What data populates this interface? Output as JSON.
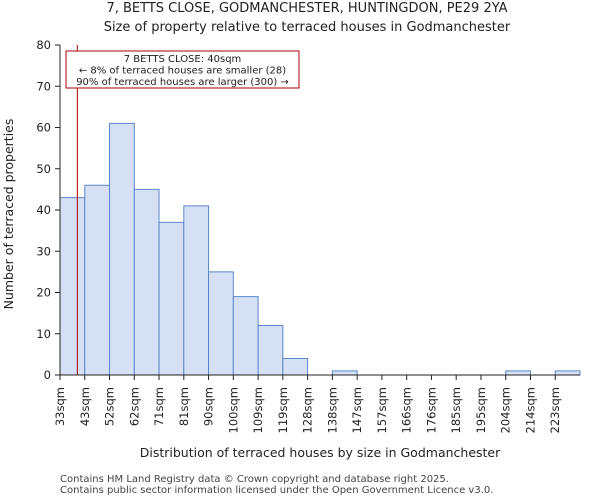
{
  "chart_data": {
    "type": "bar",
    "title_line1": "7, BETTS CLOSE, GODMANCHESTER, HUNTINGDON, PE29 2YA",
    "title_line2": "Size of property relative to terraced houses in Godmanchester",
    "xlabel": "Distribution of terraced houses by size in Godmanchester",
    "ylabel": "Number of terraced properties",
    "ylim": [
      0,
      80
    ],
    "yticks": [
      0,
      10,
      20,
      30,
      40,
      50,
      60,
      70,
      80
    ],
    "categories": [
      "33sqm",
      "43sqm",
      "52sqm",
      "62sqm",
      "71sqm",
      "81sqm",
      "90sqm",
      "100sqm",
      "109sqm",
      "119sqm",
      "128sqm",
      "138sqm",
      "147sqm",
      "157sqm",
      "166sqm",
      "176sqm",
      "185sqm",
      "195sqm",
      "204sqm",
      "214sqm",
      "223sqm"
    ],
    "values": [
      43,
      46,
      61,
      45,
      37,
      41,
      25,
      19,
      12,
      4,
      0,
      1,
      0,
      0,
      0,
      0,
      0,
      0,
      1,
      0,
      1
    ],
    "bar_color": "#d6e0f5",
    "bar_edge_color": "#5b86c8",
    "marker": {
      "value_sqm": 40,
      "color": "#aa0000",
      "label_lines": [
        "7 BETTS CLOSE: 40sqm",
        "← 8% of terraced houses are smaller (28)",
        "90% of terraced houses are larger (300) →"
      ]
    },
    "legend": "none",
    "grid": false
  },
  "footer": {
    "line1": "Contains HM Land Registry data © Crown copyright and database right 2025.",
    "line2": "Contains public sector information licensed under the Open Government Licence v3.0."
  }
}
